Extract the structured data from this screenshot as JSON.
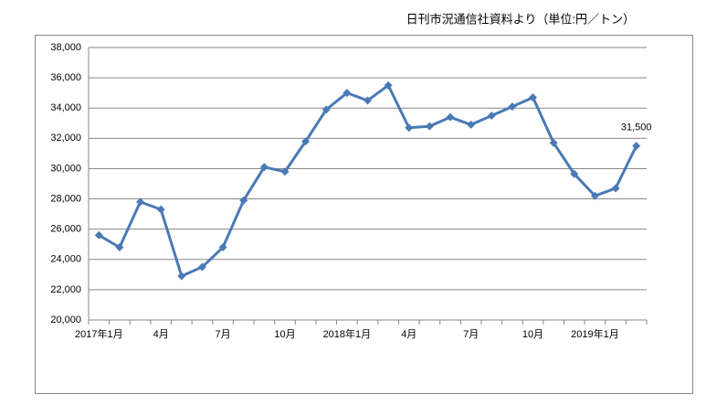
{
  "chart_data": {
    "type": "line",
    "title": "日刊市況通信社資料より（単位:円／トン）",
    "categories": [
      "2017年1月",
      null,
      null,
      "4月",
      null,
      null,
      "7月",
      null,
      null,
      "10月",
      null,
      null,
      "2018年1月",
      null,
      null,
      "4月",
      null,
      null,
      "7月",
      null,
      null,
      "10月",
      null,
      null,
      "2019年1月",
      null,
      null
    ],
    "series": [
      {
        "name": null,
        "color": "#4a7ab5",
        "values": [
          25600,
          24800,
          27800,
          27300,
          22900,
          23500,
          24800,
          27900,
          30100,
          29800,
          31800,
          33900,
          35000,
          34500,
          35500,
          32700,
          32800,
          33400,
          32900,
          33500,
          34100,
          34700,
          31700,
          29650,
          28200,
          28700,
          31500
        ],
        "value_labels": [
          null,
          null,
          null,
          null,
          null,
          null,
          null,
          null,
          null,
          null,
          null,
          null,
          null,
          null,
          null,
          null,
          null,
          null,
          null,
          null,
          null,
          null,
          null,
          null,
          null,
          null,
          "31,500"
        ]
      }
    ],
    "ylim": [
      20000,
      38000
    ],
    "yticks": [
      {
        "value": 20000,
        "label": "20,000"
      },
      {
        "value": 22000,
        "label": "22,000"
      },
      {
        "value": 24000,
        "label": "24,000"
      },
      {
        "value": 26000,
        "label": "26,000"
      },
      {
        "value": 28000,
        "label": "28,000"
      },
      {
        "value": 30000,
        "label": "30,000"
      },
      {
        "value": 32000,
        "label": "32,000"
      },
      {
        "value": 34000,
        "label": "34,000"
      },
      {
        "value": 36000,
        "label": "36,000"
      },
      {
        "value": 38000,
        "label": "38,000"
      }
    ],
    "grid": true
  }
}
